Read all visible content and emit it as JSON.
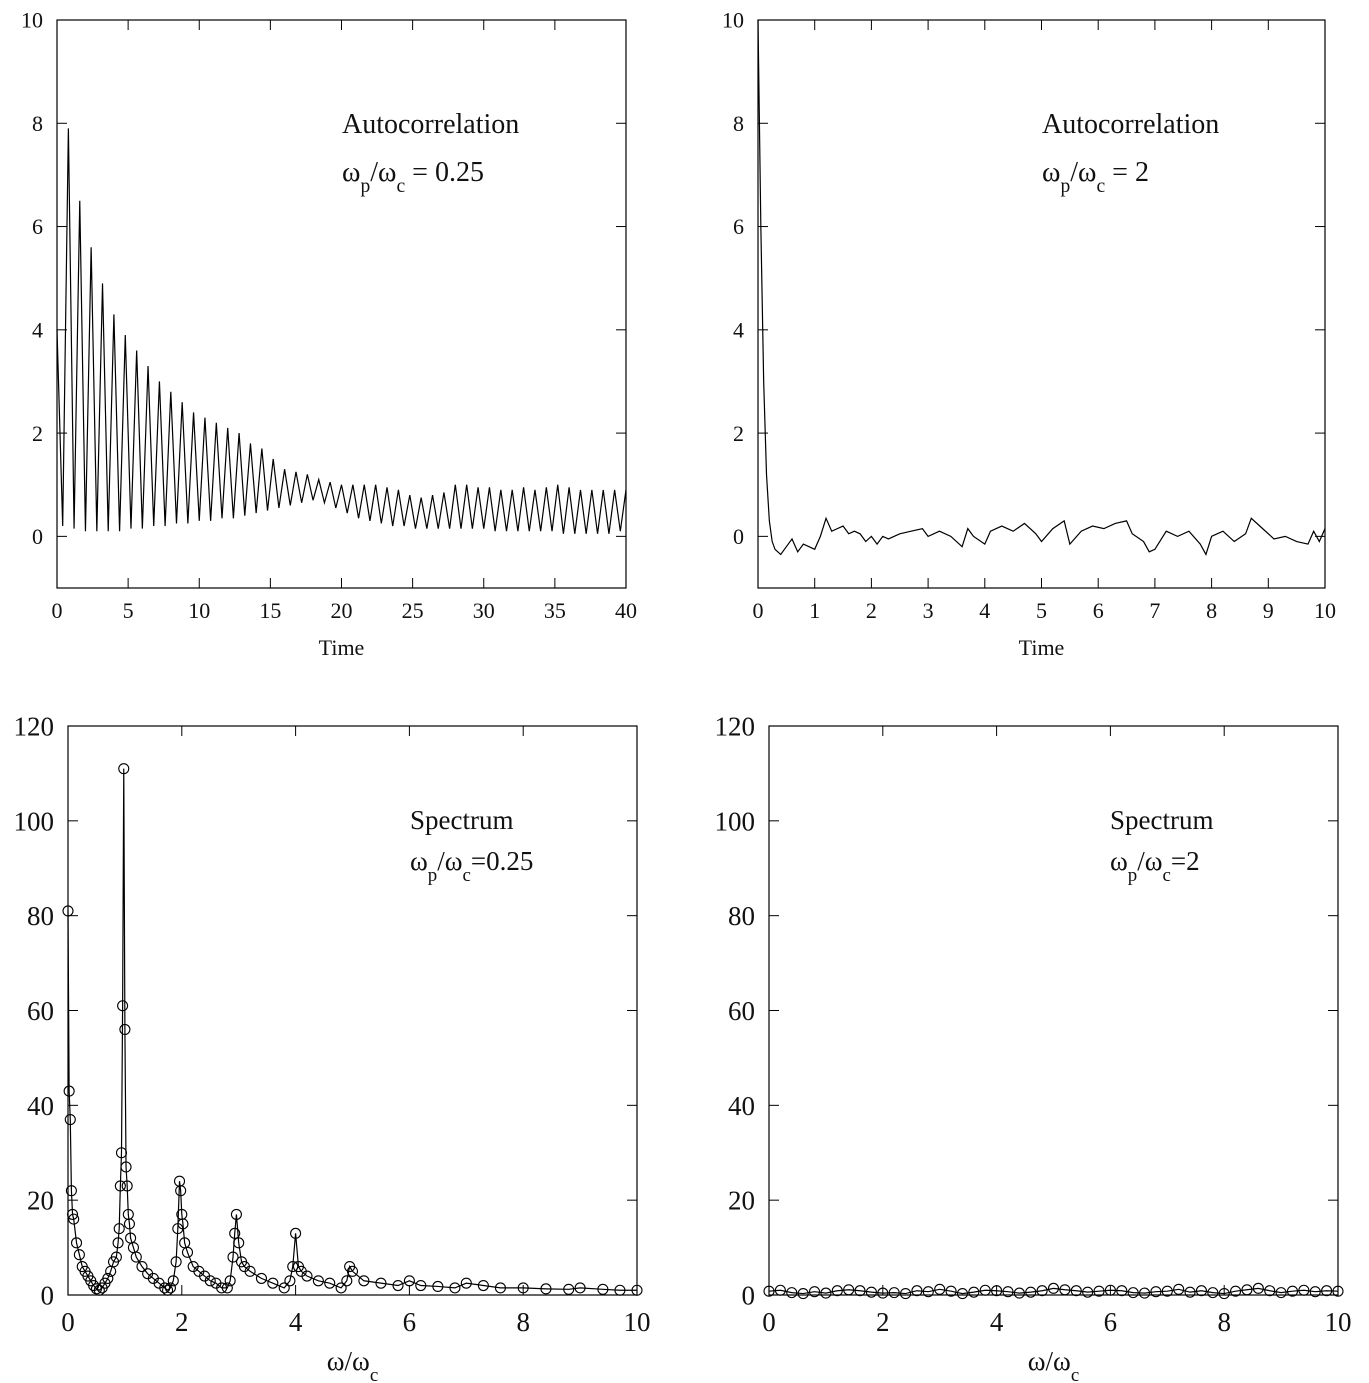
{
  "chart_data": [
    {
      "type": "line",
      "color": "#000000",
      "annotation": [
        [
          {
            "text": "Autocorrelation"
          }
        ],
        [
          {
            "text": "ω"
          },
          {
            "text": "p",
            "sub": true
          },
          {
            "text": "/ω"
          },
          {
            "text": "c",
            "sub": true
          },
          {
            "text": " = 0.25"
          }
        ]
      ],
      "x_label": [
        {
          "text": "Time"
        }
      ],
      "xlim": [
        0,
        40
      ],
      "xticks": [
        0,
        5,
        10,
        15,
        20,
        25,
        30,
        35,
        40
      ],
      "ylim": [
        -1,
        10
      ],
      "yticks": [
        0,
        2,
        4,
        6,
        8,
        10
      ],
      "x": [
        0,
        0.4,
        0.8,
        1.2,
        1.6,
        2,
        2.4,
        2.8,
        3.2,
        3.6,
        4,
        4.4,
        4.8,
        5.2,
        5.6,
        6,
        6.4,
        6.8,
        7.2,
        7.6,
        8,
        8.4,
        8.8,
        9.2,
        9.6,
        10,
        10.4,
        10.8,
        11.2,
        11.6,
        12,
        12.4,
        12.8,
        13.2,
        13.6,
        14,
        14.4,
        14.8,
        15.2,
        15.6,
        16,
        16.4,
        16.8,
        17.2,
        17.6,
        18,
        18.4,
        18.8,
        19.2,
        19.6,
        20,
        20.4,
        20.8,
        21.2,
        21.6,
        22,
        22.4,
        22.8,
        23.2,
        23.6,
        24,
        24.4,
        24.8,
        25.2,
        25.6,
        26,
        26.4,
        26.8,
        27.2,
        27.6,
        28,
        28.4,
        28.8,
        29.2,
        29.6,
        30,
        30.4,
        30.8,
        31.2,
        31.6,
        32,
        32.4,
        32.8,
        33.2,
        33.6,
        34,
        34.4,
        34.8,
        35.2,
        35.6,
        36,
        36.4,
        36.8,
        37.2,
        37.6,
        38,
        38.4,
        38.8,
        39.2,
        39.6,
        40
      ],
      "values": [
        4,
        0.2,
        7.9,
        0.15,
        6.5,
        0.1,
        5.6,
        0.1,
        4.9,
        0.1,
        4.3,
        0.1,
        3.9,
        0.15,
        3.6,
        0.15,
        3.3,
        0.2,
        3.0,
        0.2,
        2.8,
        0.25,
        2.6,
        0.25,
        2.4,
        0.3,
        2.3,
        0.3,
        2.2,
        0.35,
        2.1,
        0.35,
        2.0,
        0.4,
        1.8,
        0.45,
        1.7,
        0.5,
        1.5,
        0.55,
        1.3,
        0.6,
        1.25,
        0.65,
        1.2,
        0.7,
        1.1,
        0.65,
        1.05,
        0.55,
        1.0,
        0.45,
        1.0,
        0.35,
        1.0,
        0.3,
        1.0,
        0.25,
        0.95,
        0.2,
        0.9,
        0.2,
        0.8,
        0.15,
        0.75,
        0.15,
        0.8,
        0.15,
        0.85,
        0.15,
        1.0,
        0.15,
        1.0,
        0.15,
        0.95,
        0.15,
        0.95,
        0.1,
        0.9,
        0.1,
        0.9,
        0.1,
        0.95,
        0.1,
        0.9,
        0.1,
        0.95,
        0.1,
        1.0,
        0.05,
        0.95,
        0.05,
        0.9,
        0.05,
        0.9,
        0.05,
        0.9,
        0.05,
        0.9,
        0.1,
        0.9
      ]
    },
    {
      "type": "line",
      "color": "#000000",
      "annotation": [
        [
          {
            "text": "Autocorrelation"
          }
        ],
        [
          {
            "text": "ω"
          },
          {
            "text": "p",
            "sub": true
          },
          {
            "text": "/ω"
          },
          {
            "text": "c",
            "sub": true
          },
          {
            "text": " = 2"
          }
        ]
      ],
      "x_label": [
        {
          "text": "Time"
        }
      ],
      "xlim": [
        0,
        10
      ],
      "xticks": [
        0,
        1,
        2,
        3,
        4,
        5,
        6,
        7,
        8,
        9,
        10
      ],
      "ylim": [
        -1,
        10
      ],
      "yticks": [
        0,
        2,
        4,
        6,
        8,
        10
      ],
      "x": [
        0,
        0.05,
        0.1,
        0.15,
        0.2,
        0.25,
        0.3,
        0.4,
        0.5,
        0.6,
        0.7,
        0.8,
        0.9,
        1.0,
        1.1,
        1.2,
        1.3,
        1.4,
        1.5,
        1.6,
        1.7,
        1.8,
        1.9,
        2.0,
        2.1,
        2.2,
        2.3,
        2.5,
        2.7,
        2.9,
        3.0,
        3.2,
        3.4,
        3.6,
        3.7,
        3.8,
        4.0,
        4.1,
        4.3,
        4.5,
        4.7,
        4.9,
        5.0,
        5.2,
        5.4,
        5.5,
        5.7,
        5.9,
        6.1,
        6.3,
        6.5,
        6.6,
        6.8,
        6.9,
        7.0,
        7.2,
        7.4,
        7.6,
        7.8,
        7.9,
        8.0,
        8.2,
        8.4,
        8.6,
        8.7,
        8.9,
        9.1,
        9.3,
        9.5,
        9.7,
        9.8,
        9.9,
        10
      ],
      "values": [
        10,
        6,
        3,
        1.2,
        0.3,
        -0.1,
        -0.25,
        -0.35,
        -0.2,
        -0.05,
        -0.3,
        -0.15,
        -0.2,
        -0.25,
        0,
        0.35,
        0.1,
        0.15,
        0.2,
        0.05,
        0.1,
        0.05,
        -0.1,
        0,
        -0.15,
        0,
        -0.05,
        0.05,
        0.1,
        0.15,
        0,
        0.1,
        0,
        -0.2,
        0.15,
        0,
        -0.15,
        0.1,
        0.2,
        0.1,
        0.25,
        0.05,
        -0.1,
        0.15,
        0.3,
        -0.15,
        0.1,
        0.2,
        0.15,
        0.25,
        0.3,
        0.05,
        -0.1,
        -0.3,
        -0.25,
        0.1,
        0,
        0.1,
        -0.15,
        -0.35,
        0,
        0.1,
        -0.1,
        0.05,
        0.35,
        0.15,
        -0.05,
        0,
        -0.1,
        -0.15,
        0.1,
        -0.1,
        0.15
      ]
    },
    {
      "type": "line",
      "color": "#000000",
      "marker": "circle",
      "annotation": [
        [
          {
            "text": "Spectrum"
          }
        ],
        [
          {
            "text": "ω"
          },
          {
            "text": "p",
            "sub": true
          },
          {
            "text": "/ω"
          },
          {
            "text": "c",
            "sub": true
          },
          {
            "text": "=0.25"
          }
        ]
      ],
      "x_label": [
        {
          "text": "ω/ω"
        },
        {
          "text": "c",
          "sub": true
        }
      ],
      "xlim": [
        0,
        10
      ],
      "xticks": [
        0,
        2,
        4,
        6,
        8,
        10
      ],
      "ylim": [
        0,
        120
      ],
      "yticks": [
        0,
        20,
        40,
        60,
        80,
        100,
        120
      ],
      "x": [
        0,
        0.02,
        0.04,
        0.06,
        0.08,
        0.1,
        0.15,
        0.2,
        0.25,
        0.3,
        0.35,
        0.4,
        0.45,
        0.5,
        0.55,
        0.6,
        0.65,
        0.7,
        0.75,
        0.8,
        0.85,
        0.88,
        0.9,
        0.92,
        0.94,
        0.96,
        0.98,
        1.0,
        1.02,
        1.04,
        1.06,
        1.08,
        1.1,
        1.15,
        1.2,
        1.3,
        1.4,
        1.5,
        1.6,
        1.7,
        1.75,
        1.8,
        1.85,
        1.9,
        1.93,
        1.96,
        1.98,
        2.0,
        2.02,
        2.05,
        2.1,
        2.2,
        2.3,
        2.4,
        2.5,
        2.6,
        2.7,
        2.8,
        2.85,
        2.9,
        2.93,
        2.96,
        3.0,
        3.05,
        3.1,
        3.2,
        3.4,
        3.6,
        3.8,
        3.9,
        3.95,
        4.0,
        4.05,
        4.1,
        4.2,
        4.4,
        4.6,
        4.8,
        4.9,
        4.95,
        5.0,
        5.2,
        5.5,
        5.8,
        6.0,
        6.2,
        6.5,
        6.8,
        7.0,
        7.3,
        7.6,
        8.0,
        8.4,
        8.8,
        9.0,
        9.4,
        9.7,
        10
      ],
      "values": [
        81,
        43,
        37,
        22,
        17,
        16,
        11,
        8.5,
        6,
        5,
        4,
        3,
        2,
        1.3,
        1,
        1.5,
        2.5,
        3.5,
        5,
        7,
        8,
        11,
        14,
        23,
        30,
        61,
        111,
        56,
        27,
        23,
        17,
        15,
        12,
        10,
        8,
        6,
        4.5,
        3.5,
        2.5,
        1.5,
        1,
        1.5,
        3,
        7,
        14,
        24,
        22,
        17,
        15,
        11,
        9,
        6,
        5,
        4,
        3,
        2.5,
        1.5,
        1.5,
        3,
        8,
        13,
        17,
        11,
        7,
        6,
        5,
        3.5,
        2.5,
        1.5,
        3,
        6,
        13,
        6,
        5,
        4,
        3,
        2.5,
        1.5,
        3,
        6,
        5,
        3,
        2.5,
        2,
        3,
        2,
        1.8,
        1.5,
        2.5,
        2,
        1.5,
        1.5,
        1.3,
        1.2,
        1.5,
        1.2,
        1,
        1
      ]
    },
    {
      "type": "line",
      "color": "#000000",
      "marker": "circle",
      "annotation": [
        [
          {
            "text": "Spectrum"
          }
        ],
        [
          {
            "text": "ω"
          },
          {
            "text": "p",
            "sub": true
          },
          {
            "text": "/ω"
          },
          {
            "text": "c",
            "sub": true
          },
          {
            "text": "=2"
          }
        ]
      ],
      "x_label": [
        {
          "text": "ω/ω"
        },
        {
          "text": "c",
          "sub": true
        }
      ],
      "xlim": [
        0,
        10
      ],
      "xticks": [
        0,
        2,
        4,
        6,
        8,
        10
      ],
      "ylim": [
        0,
        120
      ],
      "yticks": [
        0,
        20,
        40,
        60,
        80,
        100,
        120
      ],
      "x": [
        0,
        0.2,
        0.4,
        0.6,
        0.8,
        1,
        1.2,
        1.4,
        1.6,
        1.8,
        2,
        2.2,
        2.4,
        2.6,
        2.8,
        3,
        3.2,
        3.4,
        3.6,
        3.8,
        4,
        4.2,
        4.4,
        4.6,
        4.8,
        5,
        5.2,
        5.4,
        5.6,
        5.8,
        6,
        6.2,
        6.4,
        6.6,
        6.8,
        7,
        7.2,
        7.4,
        7.6,
        7.8,
        8,
        8.2,
        8.4,
        8.6,
        8.8,
        9,
        9.2,
        9.4,
        9.6,
        9.8,
        10
      ],
      "values": [
        0.8,
        1.0,
        0.5,
        0.3,
        0.7,
        0.4,
        0.9,
        1.1,
        0.9,
        0.6,
        0.4,
        0.5,
        0.3,
        0.9,
        0.7,
        1.2,
        0.8,
        0.3,
        0.6,
        1.0,
        0.9,
        0.7,
        0.4,
        0.6,
        0.9,
        1.4,
        1.1,
        0.9,
        0.6,
        0.8,
        1.0,
        0.9,
        0.5,
        0.4,
        0.7,
        0.8,
        1.2,
        0.6,
        0.9,
        0.5,
        0.3,
        0.8,
        1.1,
        1.4,
        0.9,
        0.5,
        0.8,
        1.0,
        0.7,
        0.9,
        0.8
      ]
    }
  ]
}
